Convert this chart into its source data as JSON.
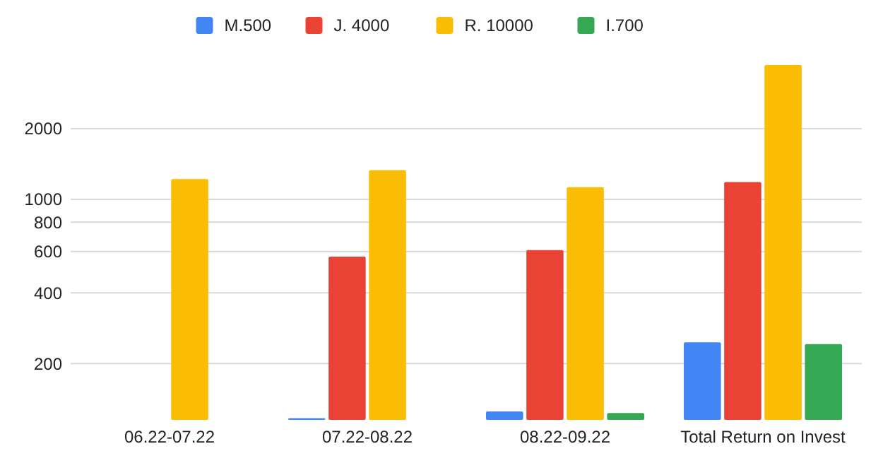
{
  "chart_data": {
    "type": "bar",
    "categories": [
      "06.22-07.22",
      "07.22-08.22",
      "08.22-09.22",
      "Total Return on Invest"
    ],
    "series": [
      {
        "name": "M.500",
        "color": "#4285f4",
        "values": [
          null,
          117,
          125,
          246
        ]
      },
      {
        "name": "J. 4000",
        "color": "#ea4335",
        "values": [
          null,
          570,
          608,
          1184
        ]
      },
      {
        "name": "R. 10000",
        "color": "#fbbc04",
        "values": [
          1220,
          1330,
          1127,
          3730
        ]
      },
      {
        "name": "I.700",
        "color": "#34a853",
        "values": [
          null,
          null,
          123,
          242
        ]
      }
    ],
    "log": true,
    "ylim": [
      115,
      3730
    ],
    "yticks": [
      200,
      400,
      600,
      800,
      1000,
      2000
    ],
    "grid": "y",
    "legend": "top"
  }
}
